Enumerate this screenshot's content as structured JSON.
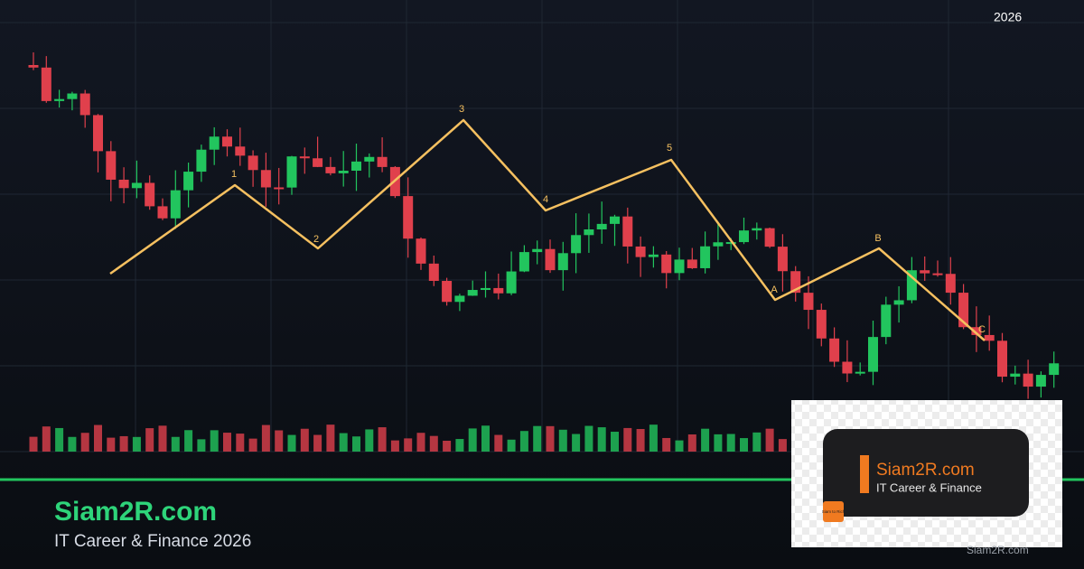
{
  "header": {
    "year": "2026"
  },
  "waves": {
    "labels": [
      "1",
      "2",
      "3",
      "4",
      "5",
      "A",
      "B",
      "C"
    ]
  },
  "brand": {
    "name": "Siam2R.com",
    "tagline": "IT Career & Finance 2026"
  },
  "logo": {
    "name": "Siam2R.com",
    "tagline": "IT Career & Finance",
    "badge": "Siam to Rich"
  },
  "watermark": "Siam2R.com"
}
